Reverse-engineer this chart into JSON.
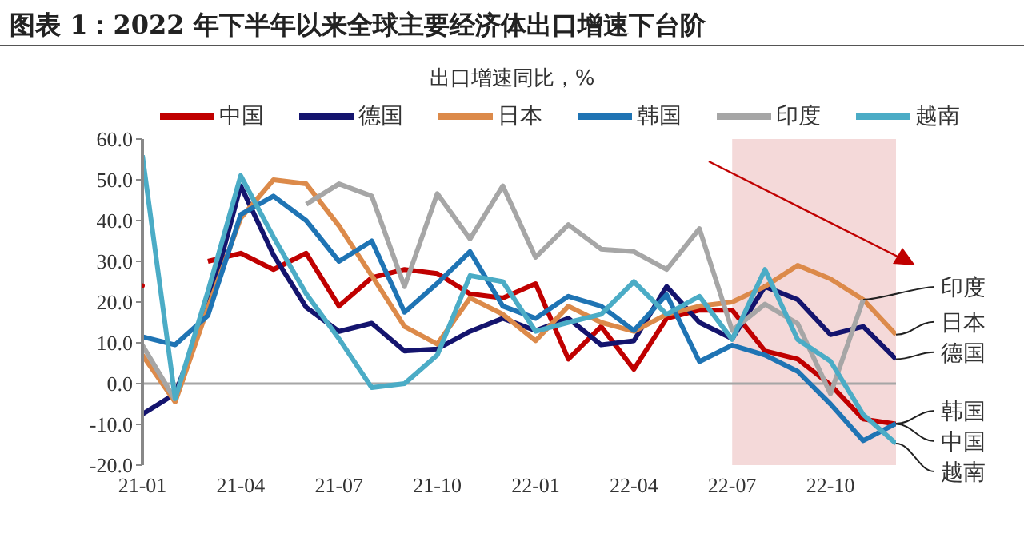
{
  "chart_data": {
    "type": "line",
    "title": "图表 1：2022 年下半年以来全球主要经济体出口增速下台阶",
    "subtitle": "出口增速同比，%",
    "x": [
      "2021-01",
      "2021-02",
      "2021-03",
      "2021-04",
      "2021-05",
      "2021-06",
      "2021-07",
      "2021-08",
      "2021-09",
      "2021-10",
      "2021-11",
      "2021-12",
      "2022-01",
      "2022-02",
      "2022-03",
      "2022-04",
      "2022-05",
      "2022-06",
      "2022-07",
      "2022-08",
      "2022-09",
      "2022-10",
      "2022-11",
      "2022-12"
    ],
    "series": [
      {
        "name": "中国",
        "color": "#c00000",
        "values": [
          24,
          null,
          30,
          32,
          28,
          32,
          19,
          26,
          28,
          27,
          22,
          21,
          24.5,
          6,
          14,
          3.5,
          16,
          18,
          18,
          8,
          6,
          -0.3,
          -8.7,
          -9.9
        ]
      },
      {
        "name": "德国",
        "color": "#14146e",
        "values": [
          -7.5,
          -2.5,
          18.7,
          48.5,
          31.6,
          18.7,
          12.8,
          14.8,
          8,
          8.5,
          12.8,
          16,
          13,
          16,
          9.5,
          10.5,
          23.8,
          15,
          11,
          23.8,
          20.6,
          12,
          14,
          6
        ]
      },
      {
        "name": "日本",
        "color": "#dc8a4a",
        "values": [
          7,
          -4.5,
          18.6,
          40.6,
          50,
          49,
          38.7,
          26.5,
          14,
          9.7,
          21,
          17,
          10.5,
          19,
          15,
          12.8,
          17,
          19,
          20,
          23.8,
          29,
          25.7,
          20.6,
          12
        ]
      },
      {
        "name": "韩国",
        "color": "#1f74b4",
        "values": [
          11.5,
          9.5,
          16.7,
          41.5,
          46,
          40,
          30,
          35,
          17.5,
          24.6,
          32.4,
          19,
          16,
          21.4,
          19,
          13,
          21.8,
          5.4,
          9.4,
          7,
          3,
          -5,
          -14,
          -9.8
        ]
      },
      {
        "name": "印度",
        "color": "#a6a6a6",
        "values": [
          9.4,
          -4,
          null,
          null,
          null,
          44,
          49,
          46,
          23.8,
          46.6,
          35.5,
          48.5,
          31,
          39,
          33,
          32.4,
          28,
          38,
          13,
          19.5,
          14.7,
          -2.5,
          20.6,
          null
        ]
      },
      {
        "name": "越南",
        "color": "#4bacc6",
        "values": [
          56,
          -3.7,
          22.6,
          51,
          36,
          22,
          11,
          -1,
          0,
          7,
          26.5,
          25,
          12.8,
          15,
          17,
          25,
          17,
          21.4,
          10.8,
          28,
          10.8,
          5.5,
          -7.6,
          -14.7
        ]
      }
    ],
    "xlim": [
      "2021-01",
      "2022-12"
    ],
    "xticks": [
      {
        "value": "2021-01",
        "label": "21-01"
      },
      {
        "value": "2021-04",
        "label": "21-04"
      },
      {
        "value": "2021-07",
        "label": "21-07"
      },
      {
        "value": "2021-10",
        "label": "21-10"
      },
      {
        "value": "2022-01",
        "label": "22-01"
      },
      {
        "value": "2022-04",
        "label": "22-04"
      },
      {
        "value": "2022-07",
        "label": "22-07"
      },
      {
        "value": "2022-10",
        "label": "22-10"
      }
    ],
    "ylim": [
      -20,
      60
    ],
    "yticks": [
      {
        "value": -20,
        "label": "-20.0"
      },
      {
        "value": -10,
        "label": "-10.0"
      },
      {
        "value": 0,
        "label": "0.0"
      },
      {
        "value": 10,
        "label": "10.0"
      },
      {
        "value": 20,
        "label": "20.0"
      },
      {
        "value": 30,
        "label": "30.0"
      },
      {
        "value": 40,
        "label": "40.0"
      },
      {
        "value": 50,
        "label": "50.0"
      },
      {
        "value": 60,
        "label": "60.0"
      }
    ],
    "ref_lines": [
      {
        "axis": "y",
        "value": 0,
        "color": "#a6a6a6"
      }
    ],
    "bands": [
      {
        "axis": "x",
        "from": "2022-07",
        "to": "2022-12",
        "color": "#f4d9d9"
      }
    ],
    "legend": "top",
    "marker": "none",
    "line_style": "solid"
  }
}
